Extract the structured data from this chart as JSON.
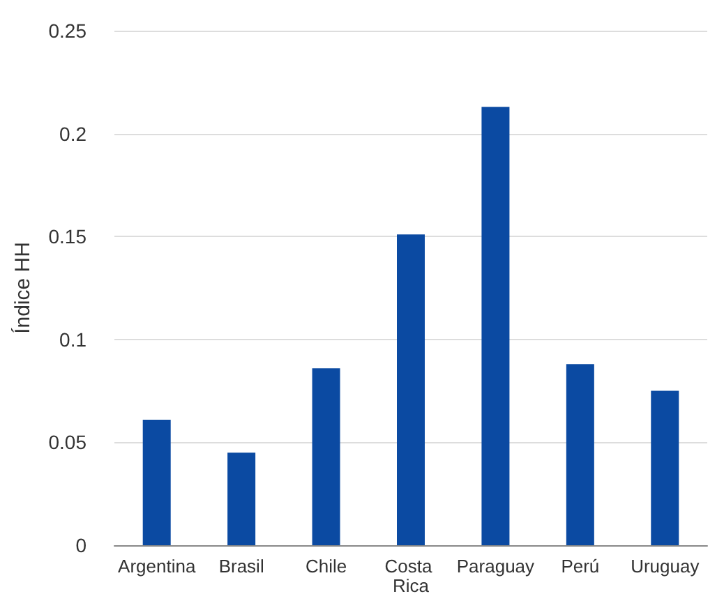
{
  "chart_data": {
    "type": "bar",
    "ylabel": "Índice HH",
    "categories": [
      "Argentina",
      "Brasil",
      "Chile",
      "Costa Rica",
      "Paraguay",
      "Perú",
      "Uruguay"
    ],
    "values": [
      0.061,
      0.045,
      0.086,
      0.151,
      0.213,
      0.088,
      0.075
    ],
    "color": "#0b4aa2",
    "ylim": [
      0,
      0.25
    ],
    "yticks": [
      0,
      0.05,
      0.1,
      0.15,
      0.2,
      0.25
    ],
    "grid": "y"
  }
}
